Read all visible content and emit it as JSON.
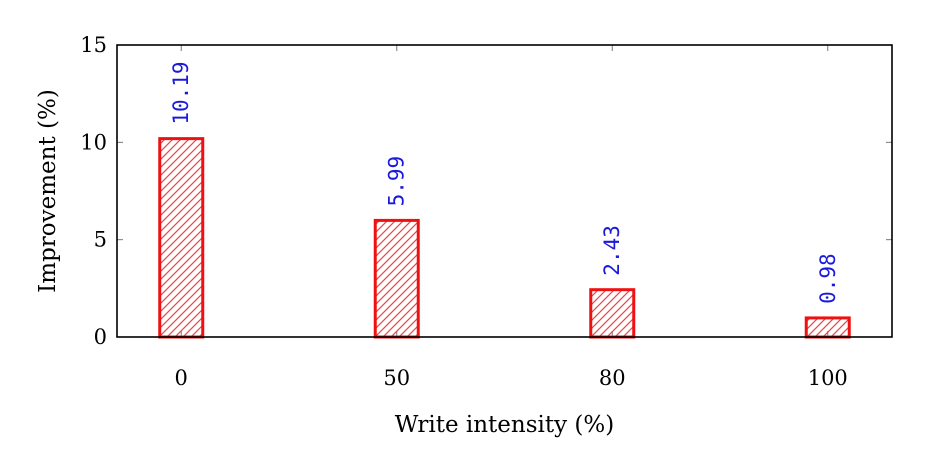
{
  "chart_data": {
    "type": "bar",
    "categories": [
      "0",
      "50",
      "80",
      "100"
    ],
    "values": [
      10.19,
      5.99,
      2.43,
      0.98
    ],
    "value_labels": [
      "10.19",
      "5.99",
      "2.43",
      "0.98"
    ],
    "xlabel": "Write intensity (%)",
    "ylabel": "Improvement (%)",
    "ylim": [
      0,
      15
    ],
    "yticks": [
      "0",
      "5",
      "10",
      "15"
    ],
    "ytick_values": [
      0,
      5,
      10,
      15
    ],
    "grid": false,
    "bar_color": "#ee1111",
    "bar_fill": "hatched",
    "label_color": "#1a1adb"
  }
}
